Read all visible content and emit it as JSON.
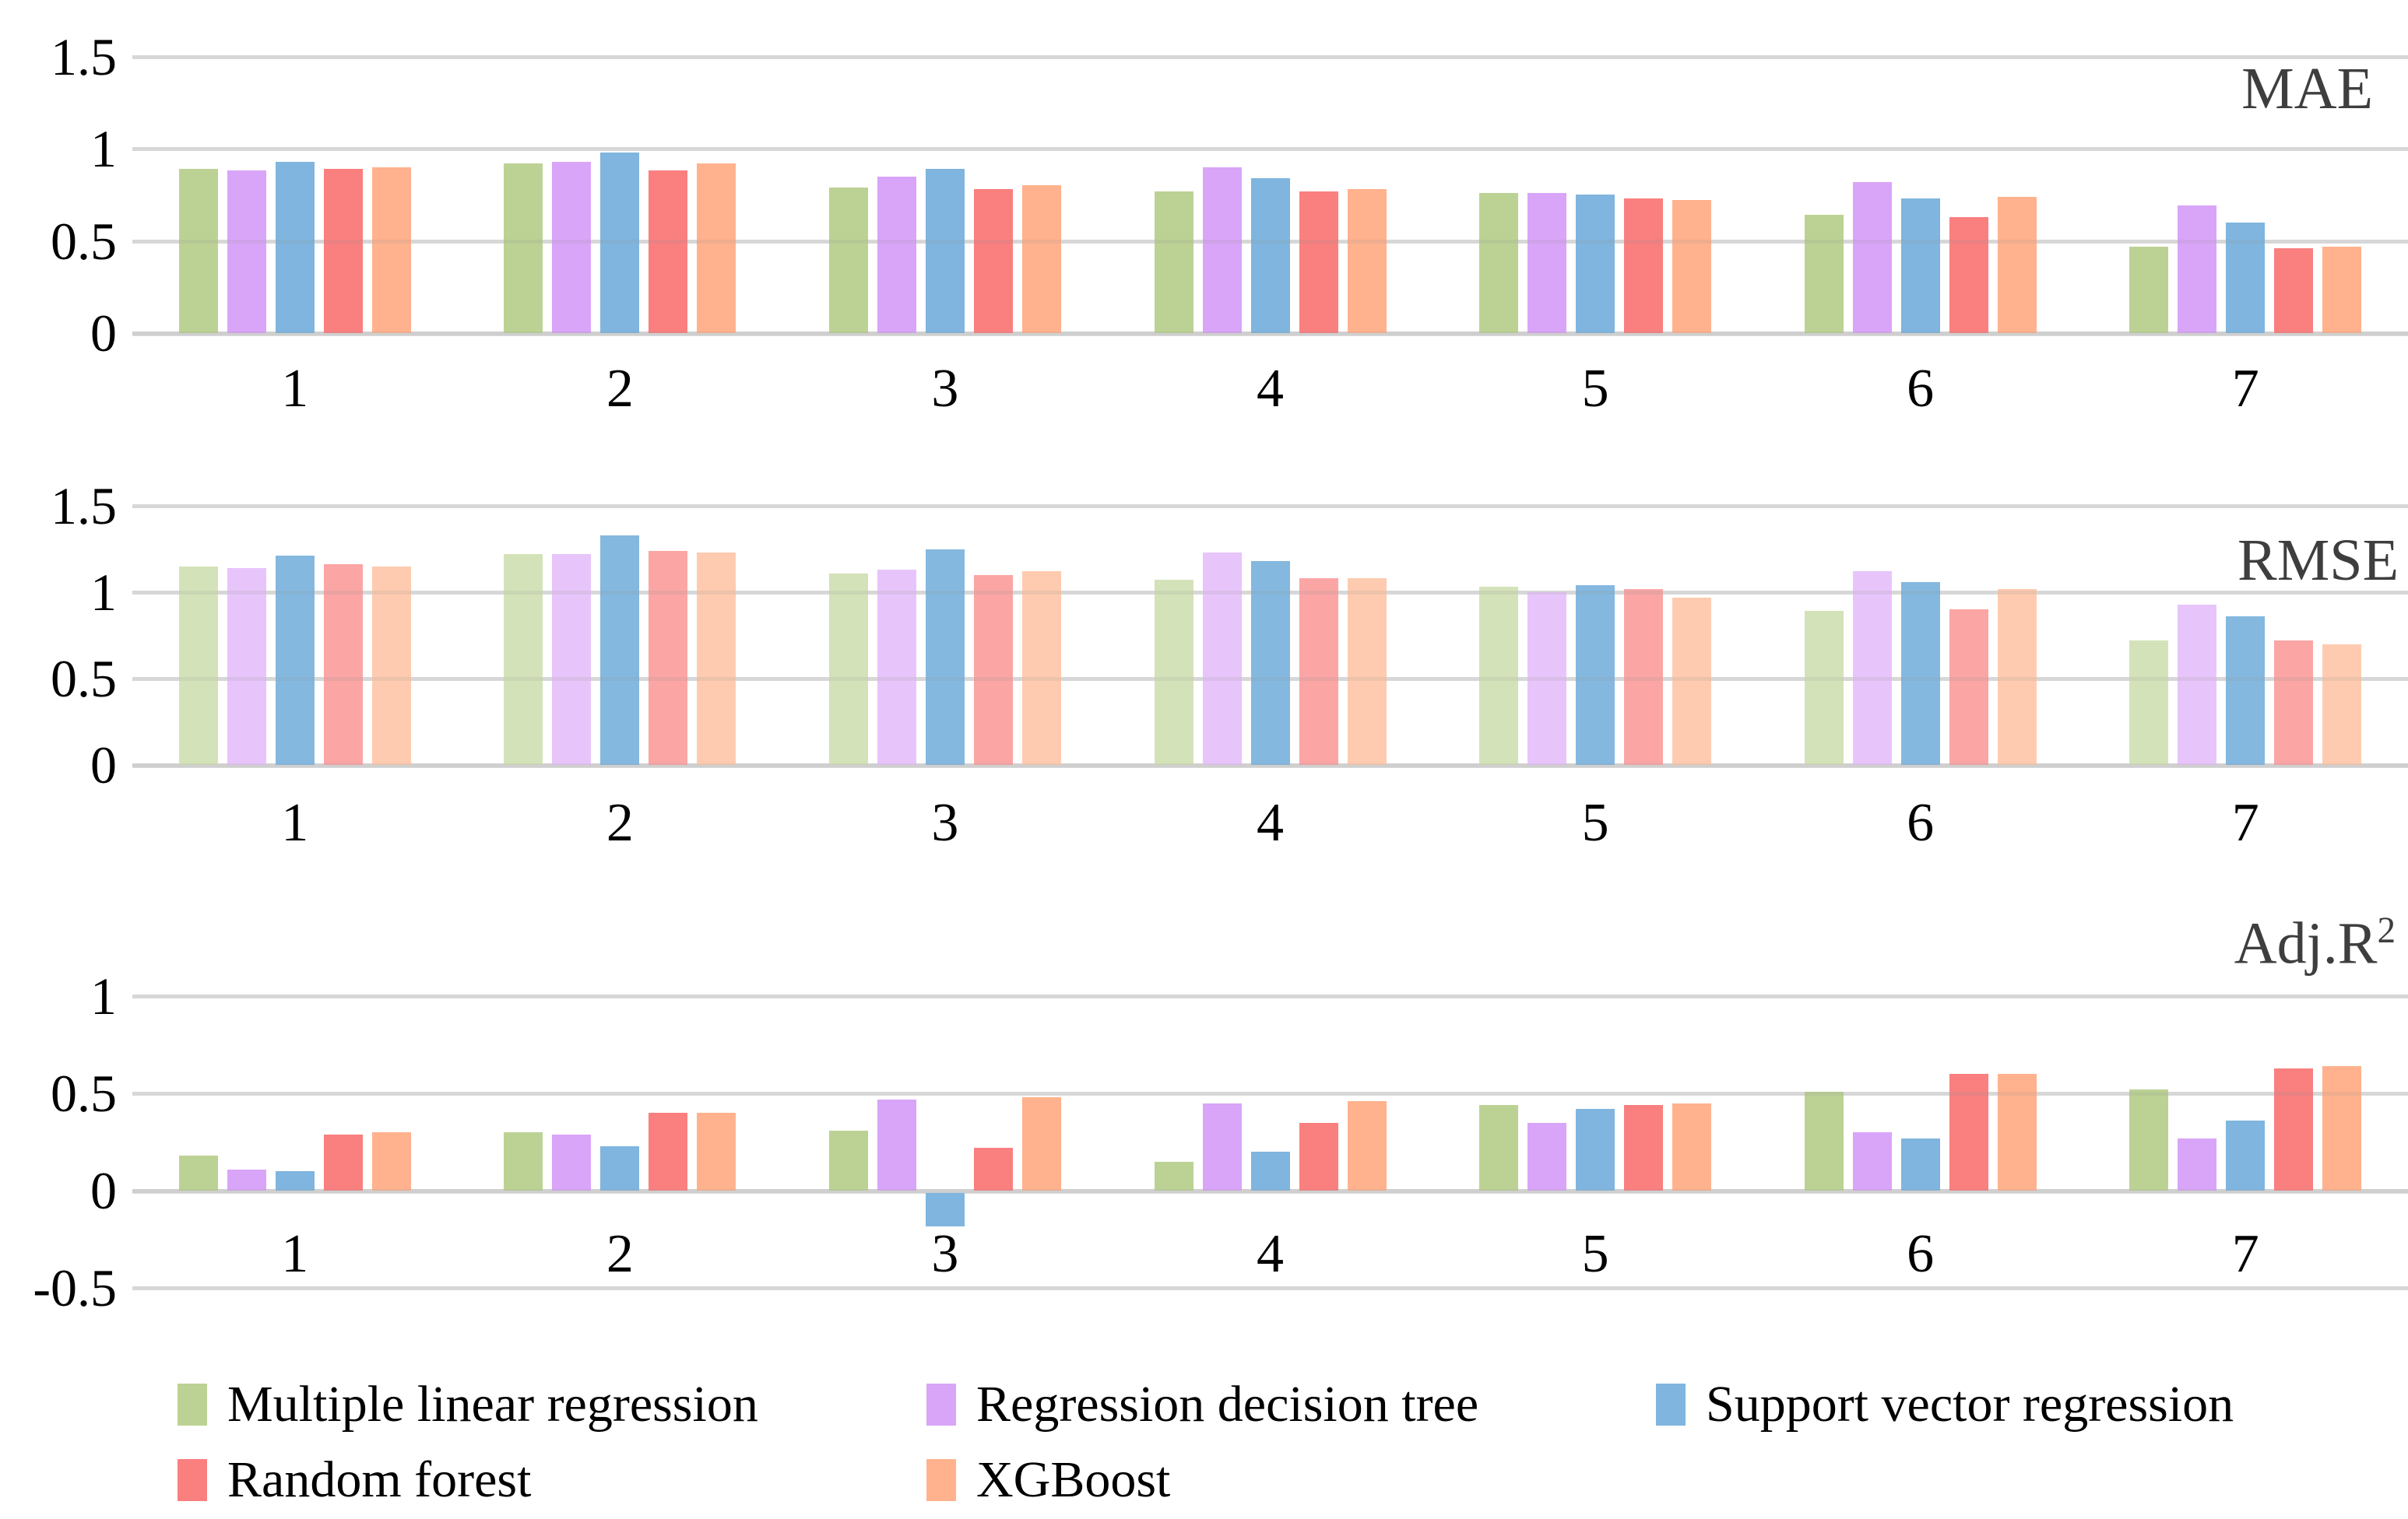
{
  "legend": {
    "items": [
      {
        "label": "Multiple linear regression",
        "color": "#BCD294",
        "color_muted": "#D4E2B9"
      },
      {
        "label": "Regression decision tree",
        "color": "#D9A5F8",
        "color_muted": "#E7C5FA"
      },
      {
        "label": "Support vector regression",
        "color": "#7FB5DE",
        "color_muted": "#84B8DF"
      },
      {
        "label": "Random forest",
        "color": "#FA7F7F",
        "color_muted": "#FBA5A5"
      },
      {
        "label": "XGBoost",
        "color": "#FFB28D",
        "color_muted": "#FECBB0"
      }
    ]
  },
  "chart_data": [
    {
      "type": "bar",
      "title": "MAE",
      "title_position": "top-right",
      "categories": [
        "1",
        "2",
        "3",
        "4",
        "5",
        "6",
        "7"
      ],
      "ylim": [
        0,
        1.5
      ],
      "yticks": [
        1.5,
        1,
        0.5,
        0
      ],
      "grid": true,
      "muted_colors": false,
      "series": [
        {
          "name": "Multiple linear regression",
          "values": [
            0.89,
            0.92,
            0.79,
            0.77,
            0.76,
            0.64,
            0.47
          ]
        },
        {
          "name": "Regression decision tree",
          "values": [
            0.88,
            0.93,
            0.85,
            0.9,
            0.76,
            0.82,
            0.69
          ]
        },
        {
          "name": "Support vector regression",
          "values": [
            0.93,
            0.98,
            0.89,
            0.84,
            0.75,
            0.73,
            0.6
          ]
        },
        {
          "name": "Random forest",
          "values": [
            0.89,
            0.88,
            0.78,
            0.77,
            0.73,
            0.63,
            0.46
          ]
        },
        {
          "name": "XGBoost",
          "values": [
            0.9,
            0.92,
            0.8,
            0.78,
            0.72,
            0.74,
            0.47
          ]
        }
      ]
    },
    {
      "type": "bar",
      "title": "RMSE",
      "title_position": "top-right",
      "categories": [
        "1",
        "2",
        "3",
        "4",
        "5",
        "6",
        "7"
      ],
      "ylim": [
        0,
        1.5
      ],
      "yticks": [
        1.5,
        1,
        0.5,
        0
      ],
      "grid": true,
      "muted_colors": true,
      "series": [
        {
          "name": "Multiple linear regression",
          "values": [
            1.15,
            1.22,
            1.11,
            1.07,
            1.03,
            0.89,
            0.72
          ]
        },
        {
          "name": "Regression decision tree",
          "values": [
            1.14,
            1.22,
            1.13,
            1.23,
            1.0,
            1.12,
            0.93
          ]
        },
        {
          "name": "Support vector regression",
          "values": [
            1.21,
            1.33,
            1.25,
            1.18,
            1.04,
            1.06,
            0.86
          ]
        },
        {
          "name": "Random forest",
          "values": [
            1.16,
            1.24,
            1.1,
            1.08,
            1.02,
            0.9,
            0.72
          ]
        },
        {
          "name": "XGBoost",
          "values": [
            1.15,
            1.23,
            1.12,
            1.08,
            0.97,
            1.02,
            0.7
          ]
        }
      ]
    },
    {
      "type": "bar",
      "title": "Adj.R²",
      "title_position": "top-right",
      "categories": [
        "1",
        "2",
        "3",
        "4",
        "5",
        "6",
        "7"
      ],
      "ylim": [
        -0.5,
        1
      ],
      "yticks": [
        1,
        0.5,
        0,
        -0.5
      ],
      "grid": true,
      "muted_colors": false,
      "series": [
        {
          "name": "Multiple linear regression",
          "values": [
            0.18,
            0.3,
            0.31,
            0.15,
            0.44,
            0.51,
            0.52
          ]
        },
        {
          "name": "Regression decision tree",
          "values": [
            0.11,
            0.29,
            0.47,
            0.45,
            0.35,
            0.3,
            0.27
          ]
        },
        {
          "name": "Support vector regression",
          "values": [
            0.1,
            0.23,
            -0.17,
            0.2,
            0.42,
            0.27,
            0.36
          ]
        },
        {
          "name": "Random forest",
          "values": [
            0.29,
            0.4,
            0.22,
            0.35,
            0.44,
            0.6,
            0.63
          ]
        },
        {
          "name": "XGBoost",
          "values": [
            0.3,
            0.4,
            0.48,
            0.46,
            0.45,
            0.6,
            0.64
          ]
        }
      ]
    }
  ]
}
